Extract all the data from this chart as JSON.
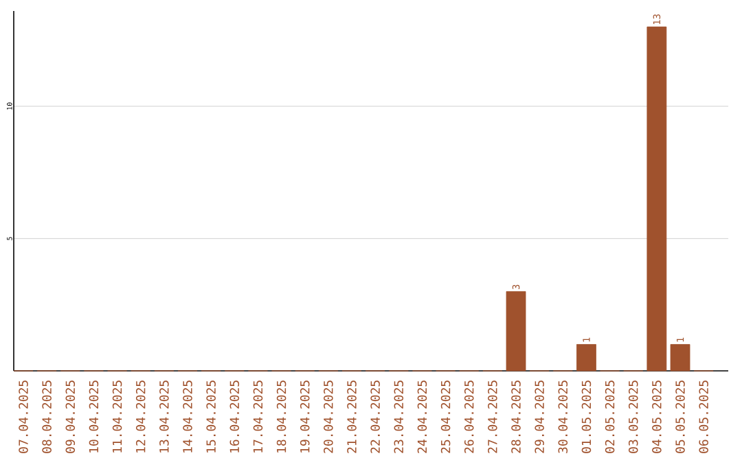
{
  "chart_data": {
    "type": "bar",
    "categories": [
      "07.04.2025",
      "08.04.2025",
      "09.04.2025",
      "10.04.2025",
      "11.04.2025",
      "12.04.2025",
      "13.04.2025",
      "14.04.2025",
      "15.04.2025",
      "16.04.2025",
      "17.04.2025",
      "18.04.2025",
      "19.04.2025",
      "20.04.2025",
      "21.04.2025",
      "22.04.2025",
      "23.04.2025",
      "24.04.2025",
      "25.04.2025",
      "26.04.2025",
      "27.04.2025",
      "28.04.2025",
      "29.04.2025",
      "30.04.2025",
      "01.05.2025",
      "02.05.2025",
      "03.05.2025",
      "04.05.2025",
      "05.05.2025",
      "06.05.2025"
    ],
    "values": [
      0,
      0,
      0,
      0,
      0,
      0,
      0,
      0,
      0,
      0,
      0,
      0,
      0,
      0,
      0,
      0,
      0,
      0,
      0,
      0,
      0,
      3,
      0,
      0,
      1,
      0,
      0,
      13,
      1,
      0
    ],
    "value_labels": [
      null,
      null,
      null,
      null,
      null,
      null,
      null,
      null,
      null,
      null,
      null,
      null,
      null,
      null,
      null,
      null,
      null,
      null,
      null,
      null,
      null,
      "3",
      null,
      null,
      "1",
      null,
      null,
      "13",
      "1",
      null
    ],
    "color": "#a0522d",
    "ylim": [
      0,
      13.6
    ],
    "yticks": [
      5,
      10
    ],
    "grid": "y"
  }
}
